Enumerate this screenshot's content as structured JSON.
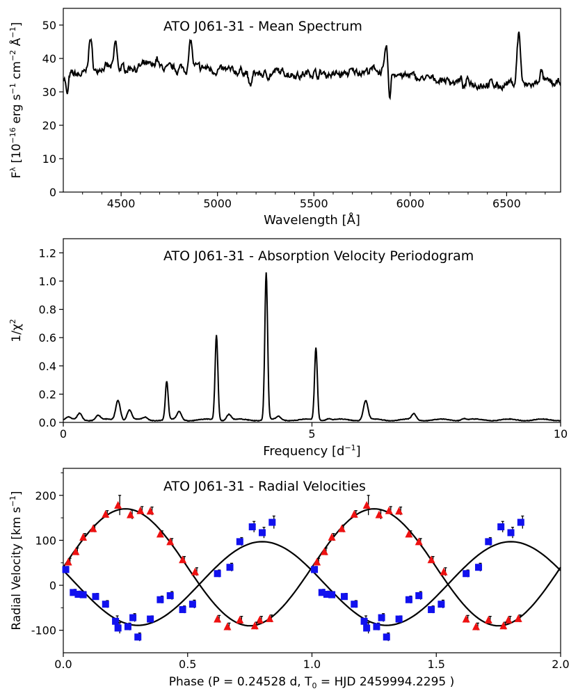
{
  "chart_data": [
    {
      "type": "line",
      "title": "ATO J061-31 - Mean Spectrum",
      "xlabel": "Wavelength [Å]",
      "ylabel_parts": [
        "F",
        "λ",
        " [10",
        "−16",
        " erg s",
        "−1",
        " cm",
        "−2",
        " Å",
        "−1",
        "]"
      ],
      "xlim": [
        4200,
        6780
      ],
      "ylim": [
        0,
        55
      ],
      "xticks": [
        4500,
        5000,
        5500,
        6000,
        6500
      ],
      "yticks": [
        0,
        10,
        20,
        30,
        40,
        50
      ],
      "series": [
        {
          "name": "mean spectrum",
          "baseline": [
            [
              4200,
              34.5
            ],
            [
              4400,
              36.8
            ],
            [
              4600,
              37.5
            ],
            [
              4800,
              37.2
            ],
            [
              5000,
              36.8
            ],
            [
              5200,
              35.5
            ],
            [
              5400,
              35.5
            ],
            [
              5600,
              35.5
            ],
            [
              5850,
              36.2
            ],
            [
              5900,
              35.8
            ],
            [
              6000,
              34.3
            ],
            [
              6200,
              33.3
            ],
            [
              6400,
              32.3
            ],
            [
              6540,
              32.0
            ],
            [
              6600,
              31.5
            ],
            [
              6780,
              32.8
            ]
          ],
          "features": [
            {
              "center": 4220,
              "amp": -6,
              "width": 6
            },
            {
              "center": 4340,
              "amp": 10,
              "width": 9
            },
            {
              "center": 4471,
              "amp": 8,
              "width": 7
            },
            {
              "center": 4686,
              "amp": 3,
              "width": 8
            },
            {
              "center": 4861,
              "amp": 9,
              "width": 8
            },
            {
              "center": 5169,
              "amp": -4,
              "width": 8
            },
            {
              "center": 5876,
              "amp": 8,
              "width": 7
            },
            {
              "center": 5892,
              "amp": -8,
              "width": 6
            },
            {
              "center": 6280,
              "amp": -2.5,
              "width": 6
            },
            {
              "center": 6563,
              "amp": 16,
              "width": 9
            },
            {
              "center": 6678,
              "amp": 3.5,
              "width": 8
            }
          ],
          "noise_amplitude": 1.3
        }
      ]
    },
    {
      "type": "line",
      "title": "ATO J061-31 - Absorption Velocity Periodogram",
      "xlabel_parts": [
        "Frequency [d",
        "−1",
        "]"
      ],
      "ylabel_parts": [
        "1/χ",
        "2"
      ],
      "xlim": [
        0,
        10
      ],
      "ylim": [
        0,
        1.3
      ],
      "xticks": [
        0,
        5,
        10
      ],
      "yticks": [
        0.0,
        0.2,
        0.4,
        0.6,
        0.8,
        1.0,
        1.2
      ],
      "ytick_labels": [
        "0.0",
        "0.2",
        "0.4",
        "0.6",
        "0.8",
        "1.0",
        "1.2"
      ],
      "baseline": 0.018,
      "peaks": [
        {
          "freq": 0.1,
          "height": 0.035
        },
        {
          "freq": 0.33,
          "height": 0.065
        },
        {
          "freq": 0.7,
          "height": 0.05
        },
        {
          "freq": 1.1,
          "height": 0.16
        },
        {
          "freq": 1.33,
          "height": 0.09
        },
        {
          "freq": 1.65,
          "height": 0.035
        },
        {
          "freq": 2.08,
          "height": 0.29
        },
        {
          "freq": 2.33,
          "height": 0.075
        },
        {
          "freq": 3.08,
          "height": 0.62
        },
        {
          "freq": 3.33,
          "height": 0.06
        },
        {
          "freq": 4.08,
          "height": 1.06
        },
        {
          "freq": 4.33,
          "height": 0.04
        },
        {
          "freq": 5.08,
          "height": 0.53
        },
        {
          "freq": 5.33,
          "height": 0.03
        },
        {
          "freq": 6.08,
          "height": 0.155
        },
        {
          "freq": 7.05,
          "height": 0.06
        },
        {
          "freq": 8.05,
          "height": 0.03
        }
      ]
    },
    {
      "type": "scatter",
      "title": "ATO J061-31 - Radial Velocities",
      "xlabel": "Phase (P =  0.24528 d,  T",
      "xlabel_sub": "0",
      "xlabel_tail": " = HJD 2459994.2295 )",
      "ylabel_parts": [
        "Radial Velocity [km s",
        "−1",
        "]"
      ],
      "xlim": [
        0,
        2
      ],
      "ylim": [
        -150,
        260
      ],
      "xticks": [
        0,
        0.5,
        1.0,
        1.5,
        2.0
      ],
      "xtick_labels": [
        "0.0",
        "0.5",
        "1.0",
        "1.5",
        "2.0"
      ],
      "yticks": [
        -100,
        0,
        100,
        200
      ],
      "model_curves": [
        {
          "name": "emission fit",
          "gamma": 40,
          "K": 130,
          "phase_of_max": 0.25,
          "color": "#000000"
        },
        {
          "name": "absorption fit",
          "gamma": 4,
          "K": 93,
          "phase_of_max": 0.8,
          "color": "#000000"
        }
      ],
      "series": [
        {
          "name": "red triangles",
          "marker": "triangle",
          "color": "#ee1111",
          "points": [
            [
              0.02,
              52,
              8
            ],
            [
              0.05,
              75,
              8
            ],
            [
              0.08,
              107,
              8
            ],
            [
              0.12,
              126,
              8
            ],
            [
              0.17,
              158,
              8
            ],
            [
              0.22,
              178,
              22
            ],
            [
              0.27,
              157,
              10
            ],
            [
              0.31,
              166,
              9
            ],
            [
              0.35,
              165,
              9
            ],
            [
              0.39,
              114,
              7
            ],
            [
              0.43,
              97,
              7
            ],
            [
              0.48,
              57,
              7
            ],
            [
              0.53,
              30,
              9
            ],
            [
              0.62,
              -75,
              8
            ],
            [
              0.66,
              -92,
              8
            ],
            [
              0.71,
              -77,
              8
            ],
            [
              0.79,
              -77,
              8
            ],
            [
              0.83,
              -74,
              8
            ],
            [
              0.77,
              -90,
              8
            ]
          ]
        },
        {
          "name": "blue squares",
          "marker": "square",
          "color": "#1111ee",
          "points": [
            [
              0.01,
              35,
              7
            ],
            [
              0.04,
              -16,
              7
            ],
            [
              0.06,
              -20,
              7
            ],
            [
              0.08,
              -21,
              7
            ],
            [
              0.13,
              -25,
              7
            ],
            [
              0.17,
              -42,
              8
            ],
            [
              0.21,
              -80,
              12
            ],
            [
              0.22,
              -95,
              12
            ],
            [
              0.26,
              -92,
              8
            ],
            [
              0.28,
              -72,
              9
            ],
            [
              0.3,
              -115,
              9
            ],
            [
              0.35,
              -75,
              7
            ],
            [
              0.39,
              -32,
              8
            ],
            [
              0.43,
              -23,
              9
            ],
            [
              0.48,
              -54,
              8
            ],
            [
              0.52,
              -42,
              9
            ],
            [
              0.62,
              26,
              8
            ],
            [
              0.67,
              40,
              9
            ],
            [
              0.71,
              97,
              9
            ],
            [
              0.76,
              130,
              12
            ],
            [
              0.8,
              117,
              12
            ],
            [
              0.84,
              140,
              14
            ]
          ]
        }
      ]
    }
  ]
}
